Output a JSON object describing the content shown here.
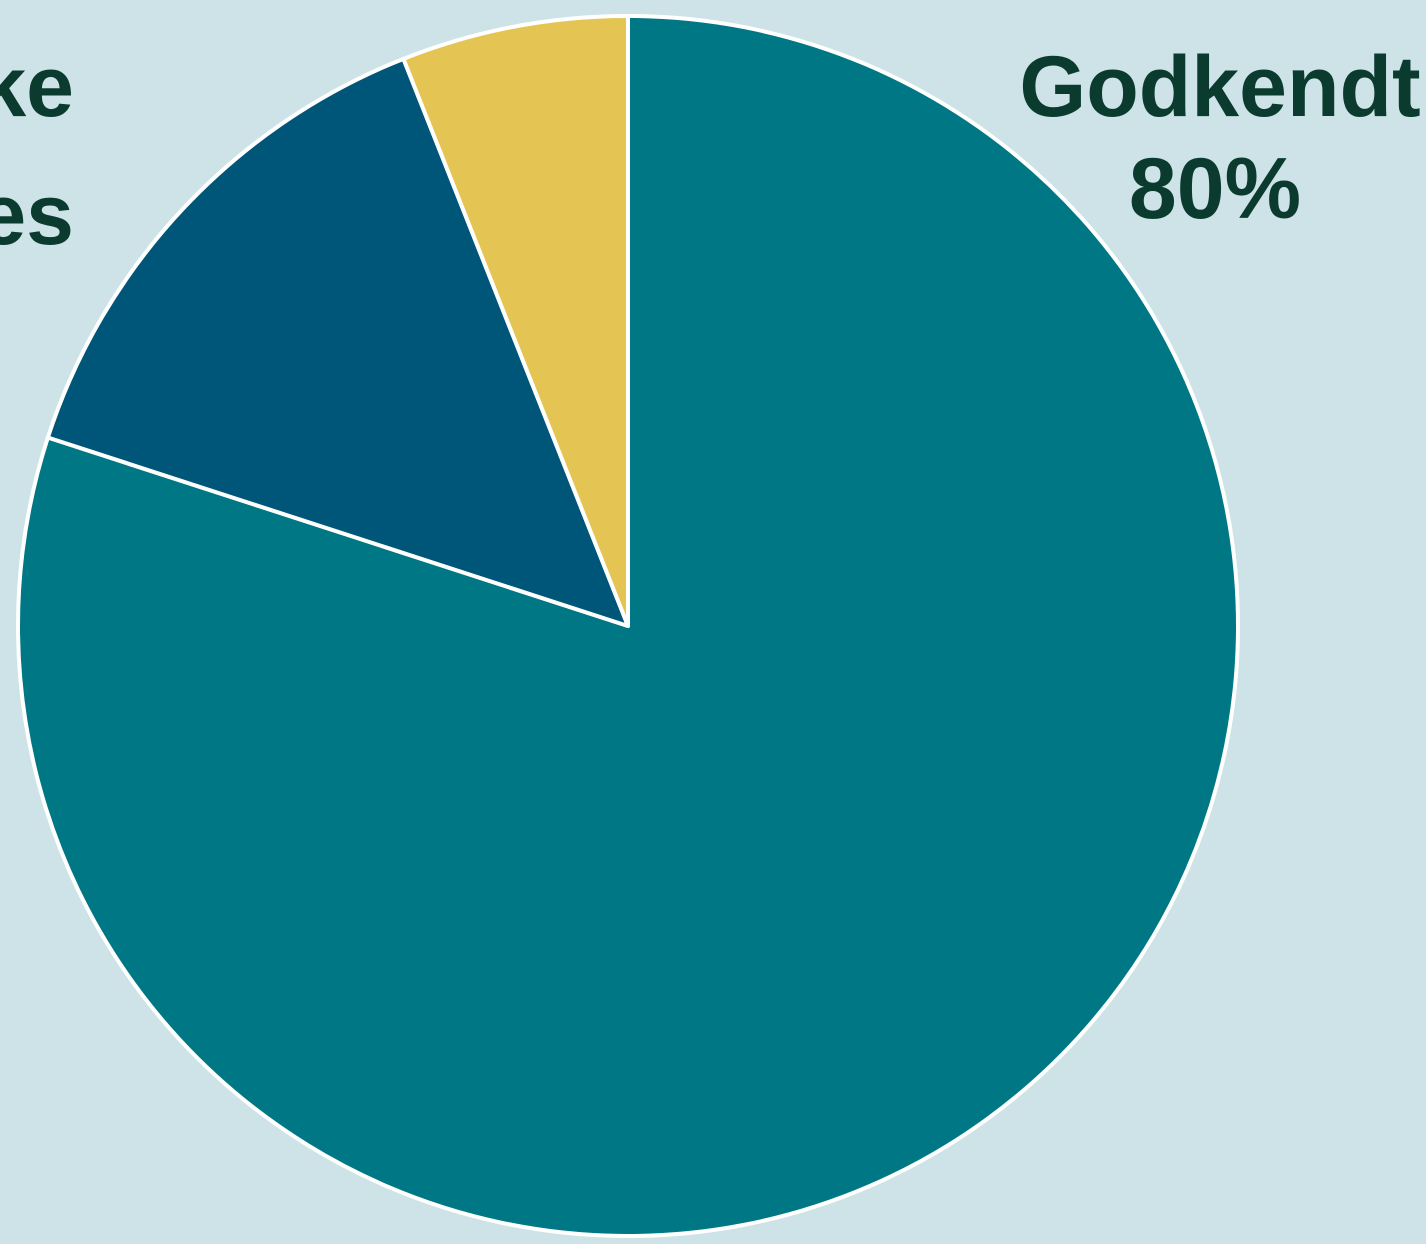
{
  "chart_data": {
    "type": "pie",
    "start_angle_deg": 0,
    "direction": "clockwise",
    "slices": [
      {
        "label": "Godkendt",
        "value": 80,
        "value_text": "80%",
        "color": "#007785"
      },
      {
        "label": "",
        "value": 14,
        "value_text": "",
        "color": "#005678"
      },
      {
        "label": "",
        "value": 6,
        "value_text": "",
        "color": "#e4c554"
      }
    ],
    "visible_label_fragments": [
      {
        "text": "ke"
      },
      {
        "text": "es"
      }
    ]
  }
}
